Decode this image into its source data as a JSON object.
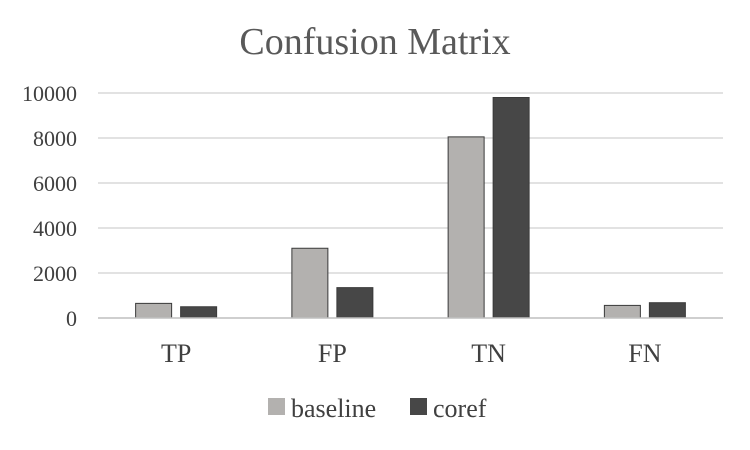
{
  "chart_data": {
    "type": "bar",
    "title": "Confusion Matrix",
    "categories": [
      "TP",
      "FP",
      "TN",
      "FN"
    ],
    "series": [
      {
        "name": "baseline",
        "values": [
          650,
          3100,
          8050,
          560
        ],
        "color": "#b3b1af"
      },
      {
        "name": "coref",
        "values": [
          500,
          1350,
          9800,
          680
        ],
        "color": "#474747"
      }
    ],
    "xlabel": "",
    "ylabel": "",
    "ylim": [
      0,
      10000
    ],
    "yticks": [
      0,
      2000,
      4000,
      6000,
      8000,
      10000
    ],
    "grid": true,
    "legend_position": "bottom"
  }
}
